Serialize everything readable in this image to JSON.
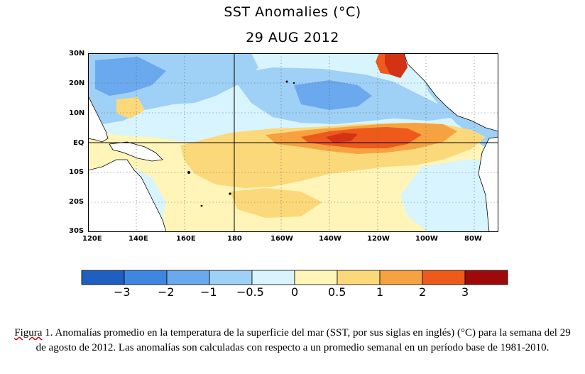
{
  "map": {
    "title": "SST Anomalies (°C)",
    "date": "29 AUG 2012",
    "lat_labels": [
      "30N",
      "20N",
      "10N",
      "EQ",
      "10S",
      "20S",
      "30S"
    ],
    "lon_labels": [
      "120E",
      "140E",
      "160E",
      "180",
      "160W",
      "140W",
      "120W",
      "100W",
      "80W"
    ],
    "colors": {
      "neg3": "#1f5fbf",
      "neg2": "#3f86e0",
      "neg1": "#6aa9ee",
      "neg05": "#9fd0f6",
      "zero_neg": "#d8f4ff",
      "zero_pos": "#fff5b8",
      "pos05": "#fbd97a",
      "pos1": "#f6a240",
      "pos2": "#ed5a1c",
      "pos3": "#d43214",
      "pos4": "#9e0a0a",
      "land": "#ffffff"
    }
  },
  "colorbar": {
    "labels": [
      "−3",
      "−2",
      "−1",
      "−0.5",
      "0",
      "0.5",
      "1",
      "2",
      "3"
    ],
    "colors": [
      "#1f5fbf",
      "#3f86e0",
      "#6aa9ee",
      "#9fd0f6",
      "#d8f4ff",
      "#fff5b8",
      "#fbd97a",
      "#f6a240",
      "#ed5a1c",
      "#9e0a0a"
    ]
  },
  "caption": {
    "fig_word": "Figura",
    "text": " 1. Anomalías promedio en la temperatura de la superficie del mar (SST, por sus siglas en inglés) (°C) para la semana del 29 de agosto de 2012. Las anomalías son calculadas con respecto a un promedio semanal en un período base de 1981-2010."
  }
}
